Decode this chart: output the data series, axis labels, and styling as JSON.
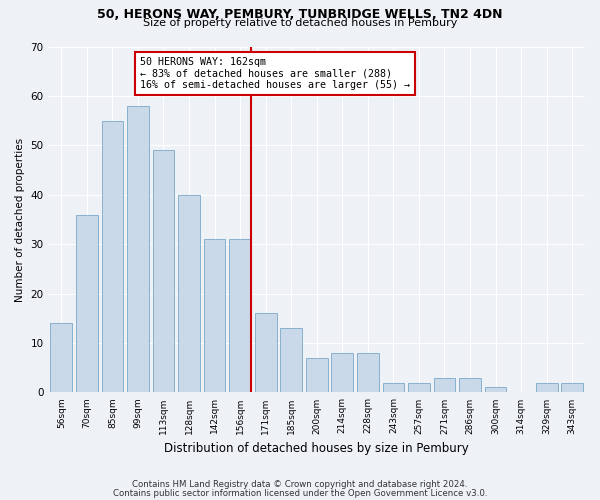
{
  "title1": "50, HERONS WAY, PEMBURY, TUNBRIDGE WELLS, TN2 4DN",
  "title2": "Size of property relative to detached houses in Pembury",
  "xlabel": "Distribution of detached houses by size in Pembury",
  "ylabel": "Number of detached properties",
  "categories": [
    "56sqm",
    "70sqm",
    "85sqm",
    "99sqm",
    "113sqm",
    "128sqm",
    "142sqm",
    "156sqm",
    "171sqm",
    "185sqm",
    "200sqm",
    "214sqm",
    "228sqm",
    "243sqm",
    "257sqm",
    "271sqm",
    "286sqm",
    "300sqm",
    "314sqm",
    "329sqm",
    "343sqm"
  ],
  "values": [
    14,
    36,
    55,
    58,
    49,
    40,
    31,
    31,
    16,
    13,
    7,
    8,
    8,
    2,
    2,
    3,
    3,
    1,
    0,
    2,
    2
  ],
  "bar_color": "#c9d9ea",
  "bar_edge_color": "#7ba7c7",
  "marker_bin_index": 7,
  "marker_color": "#cc0000",
  "annotation_line1": "50 HERONS WAY: 162sqm",
  "annotation_line2": "← 83% of detached houses are smaller (288)",
  "annotation_line3": "16% of semi-detached houses are larger (55) →",
  "annotation_box_color": "#cc0000",
  "ylim": [
    0,
    70
  ],
  "yticks": [
    0,
    10,
    20,
    30,
    40,
    50,
    60,
    70
  ],
  "footnote1": "Contains HM Land Registry data © Crown copyright and database right 2024.",
  "footnote2": "Contains public sector information licensed under the Open Government Licence v3.0.",
  "bg_color": "#eef2f7",
  "plot_bg_color": "#eef2f7",
  "grid_color": "#ffffff"
}
